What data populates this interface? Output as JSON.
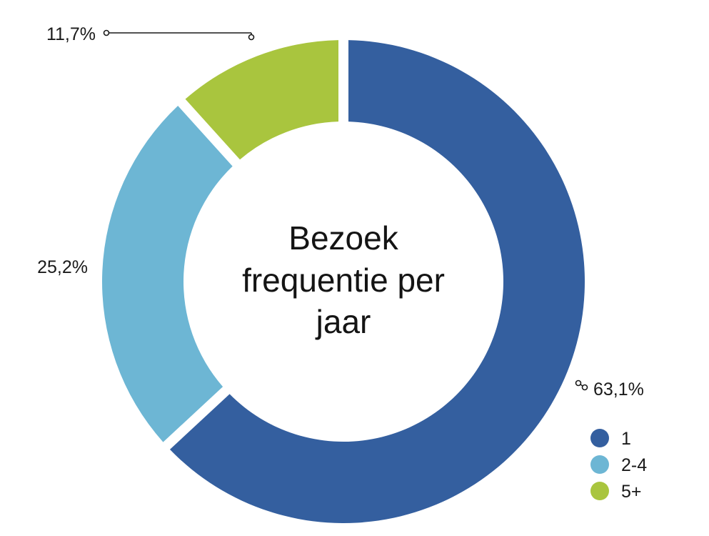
{
  "chart_data": {
    "type": "pie",
    "title_lines": [
      "Bezoek",
      "frequentie per",
      "jaar"
    ],
    "categories": [
      "1",
      "2-4",
      "5+"
    ],
    "values": [
      63.1,
      25.2,
      11.7
    ],
    "value_labels": [
      "63,1%",
      "25,2%",
      "11,7%"
    ],
    "colors": [
      "#345f9f",
      "#6db6d4",
      "#a9c53e"
    ],
    "donut": true,
    "legend_position": "bottom-right"
  }
}
